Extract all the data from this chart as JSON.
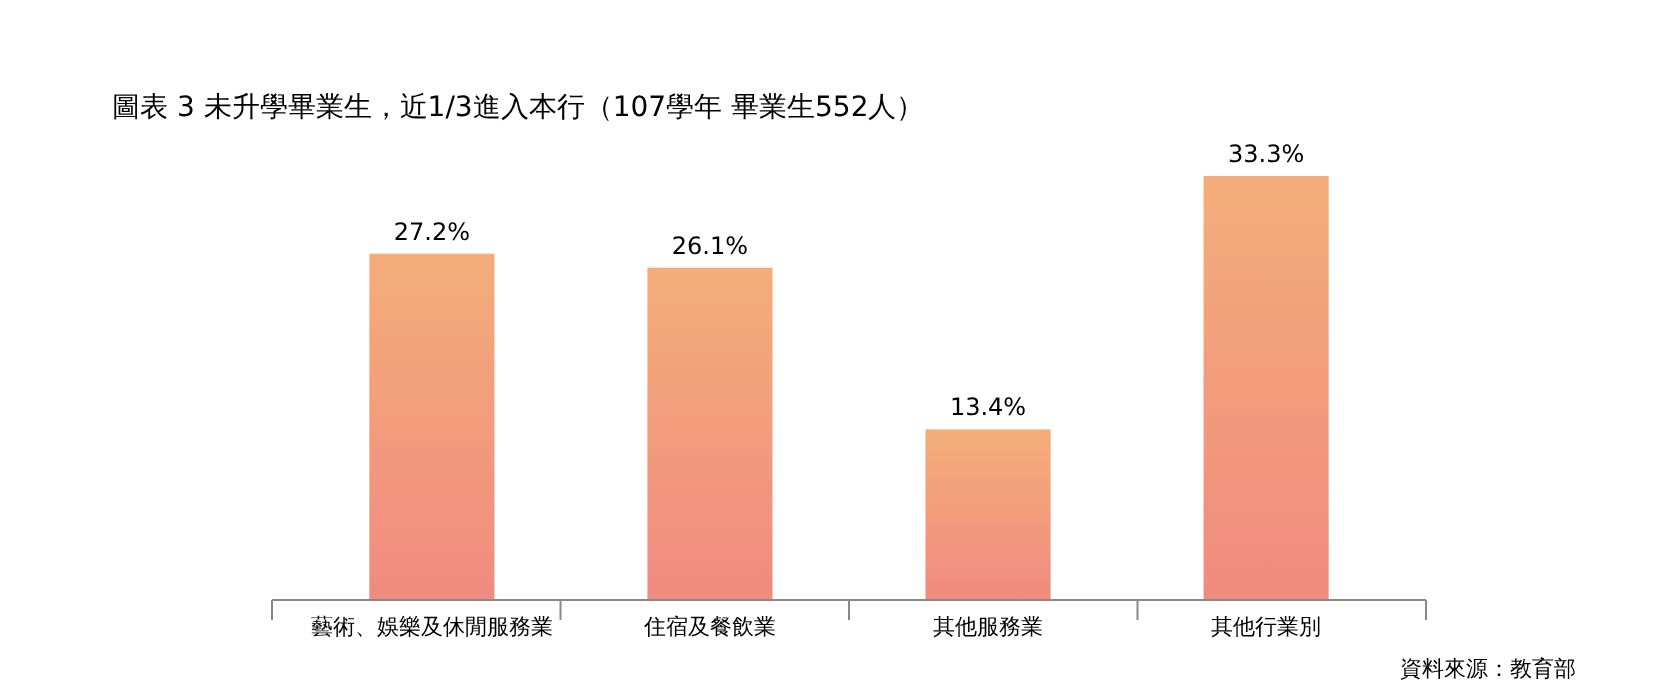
{
  "chart_data": {
    "type": "bar",
    "title": "圖表 3 未升學畢業生，近1/3進入本行（107學年 畢業生552人）",
    "categories": [
      "藝術、娛樂及休閒服務業",
      "住宿及餐飲業",
      "其他服務業",
      "其他行業別"
    ],
    "values": [
      27.2,
      26.1,
      13.4,
      33.3
    ],
    "value_labels": [
      "27.2%",
      "26.1%",
      "13.4%",
      "33.3%"
    ],
    "color": "#f29c7d",
    "annotations": [
      "資料來源：教育部"
    ]
  }
}
